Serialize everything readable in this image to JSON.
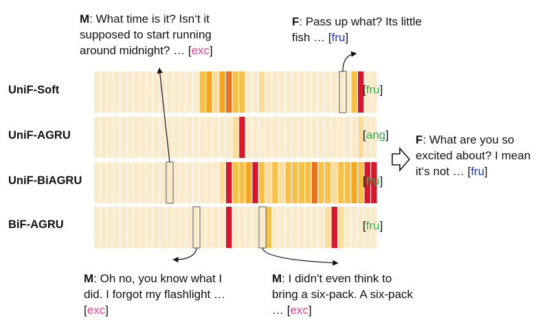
{
  "rows": [
    {
      "name": "UniF-Soft",
      "pred": "fru",
      "pred_color": "#2bb34a",
      "weights": [
        1,
        1,
        1,
        1,
        1,
        1,
        1,
        1,
        1,
        1,
        1,
        1,
        1,
        1,
        1,
        1,
        3,
        4,
        2,
        4,
        5,
        3,
        3,
        1,
        1,
        2,
        1,
        1,
        1,
        1,
        1,
        1,
        1,
        1,
        1,
        1,
        1,
        1,
        1,
        3,
        6,
        1,
        1
      ]
    },
    {
      "name": "UniF-AGRU",
      "pred": "ang",
      "pred_color": "#2bb34a",
      "weights": [
        1,
        1,
        1,
        1,
        1,
        1,
        1,
        1,
        1,
        1,
        1,
        1,
        1,
        1,
        1,
        1,
        1,
        1,
        1,
        1,
        1,
        2,
        6,
        1,
        1,
        1,
        1,
        1,
        1,
        1,
        1,
        1,
        1,
        1,
        1,
        1,
        1,
        1,
        1,
        1,
        2,
        1,
        1
      ]
    },
    {
      "name": "UniF-BiAGRU",
      "pred": "fru",
      "pred_color": "#2bb34a",
      "weights": [
        1,
        1,
        1,
        1,
        1,
        1,
        1,
        1,
        1,
        1,
        1,
        1,
        1,
        1,
        1,
        1,
        1,
        1,
        1,
        2,
        6,
        3,
        3,
        4,
        6,
        3,
        2,
        3,
        2,
        3,
        3,
        3,
        3,
        5,
        3,
        3,
        2,
        3,
        3,
        4,
        3,
        6,
        6
      ]
    },
    {
      "name": "BiF-AGRU",
      "pred": "fru",
      "pred_color": "#2bb34a",
      "weights": [
        1,
        1,
        1,
        1,
        1,
        1,
        1,
        1,
        1,
        1,
        1,
        1,
        1,
        1,
        1,
        1,
        1,
        1,
        1,
        1,
        6,
        1,
        1,
        1,
        1,
        1,
        3,
        1,
        1,
        1,
        1,
        1,
        1,
        1,
        1,
        2,
        6,
        2,
        1,
        1,
        1,
        1,
        1
      ]
    }
  ],
  "callouts": {
    "top_left": {
      "speaker": "M",
      "text": ": What time is it?  Isn‘t it supposed to start running around midnight? … ",
      "label": "exc"
    },
    "top_right": {
      "speaker": "F",
      "text": ": Pass up what?  Its little fish … ",
      "label": "fru"
    },
    "right": {
      "speaker": "F",
      "text": ": What are you so excited about?  I mean it‘s not … ",
      "label": "fru"
    },
    "bottom_left": {
      "speaker": "M",
      "text": ": Oh no, you know what I did.  I forgot my flashlight … ",
      "label": "exc"
    },
    "bottom_right": {
      "speaker": "M",
      "text": ": I didn't even think to bring a six-pack.  A six-pack … ",
      "label": "exc"
    }
  },
  "palette": [
    "#fbeacb",
    "#fbdc9a",
    "#f7c048",
    "#f5a623",
    "#e8731e",
    "#d4192e"
  ]
}
